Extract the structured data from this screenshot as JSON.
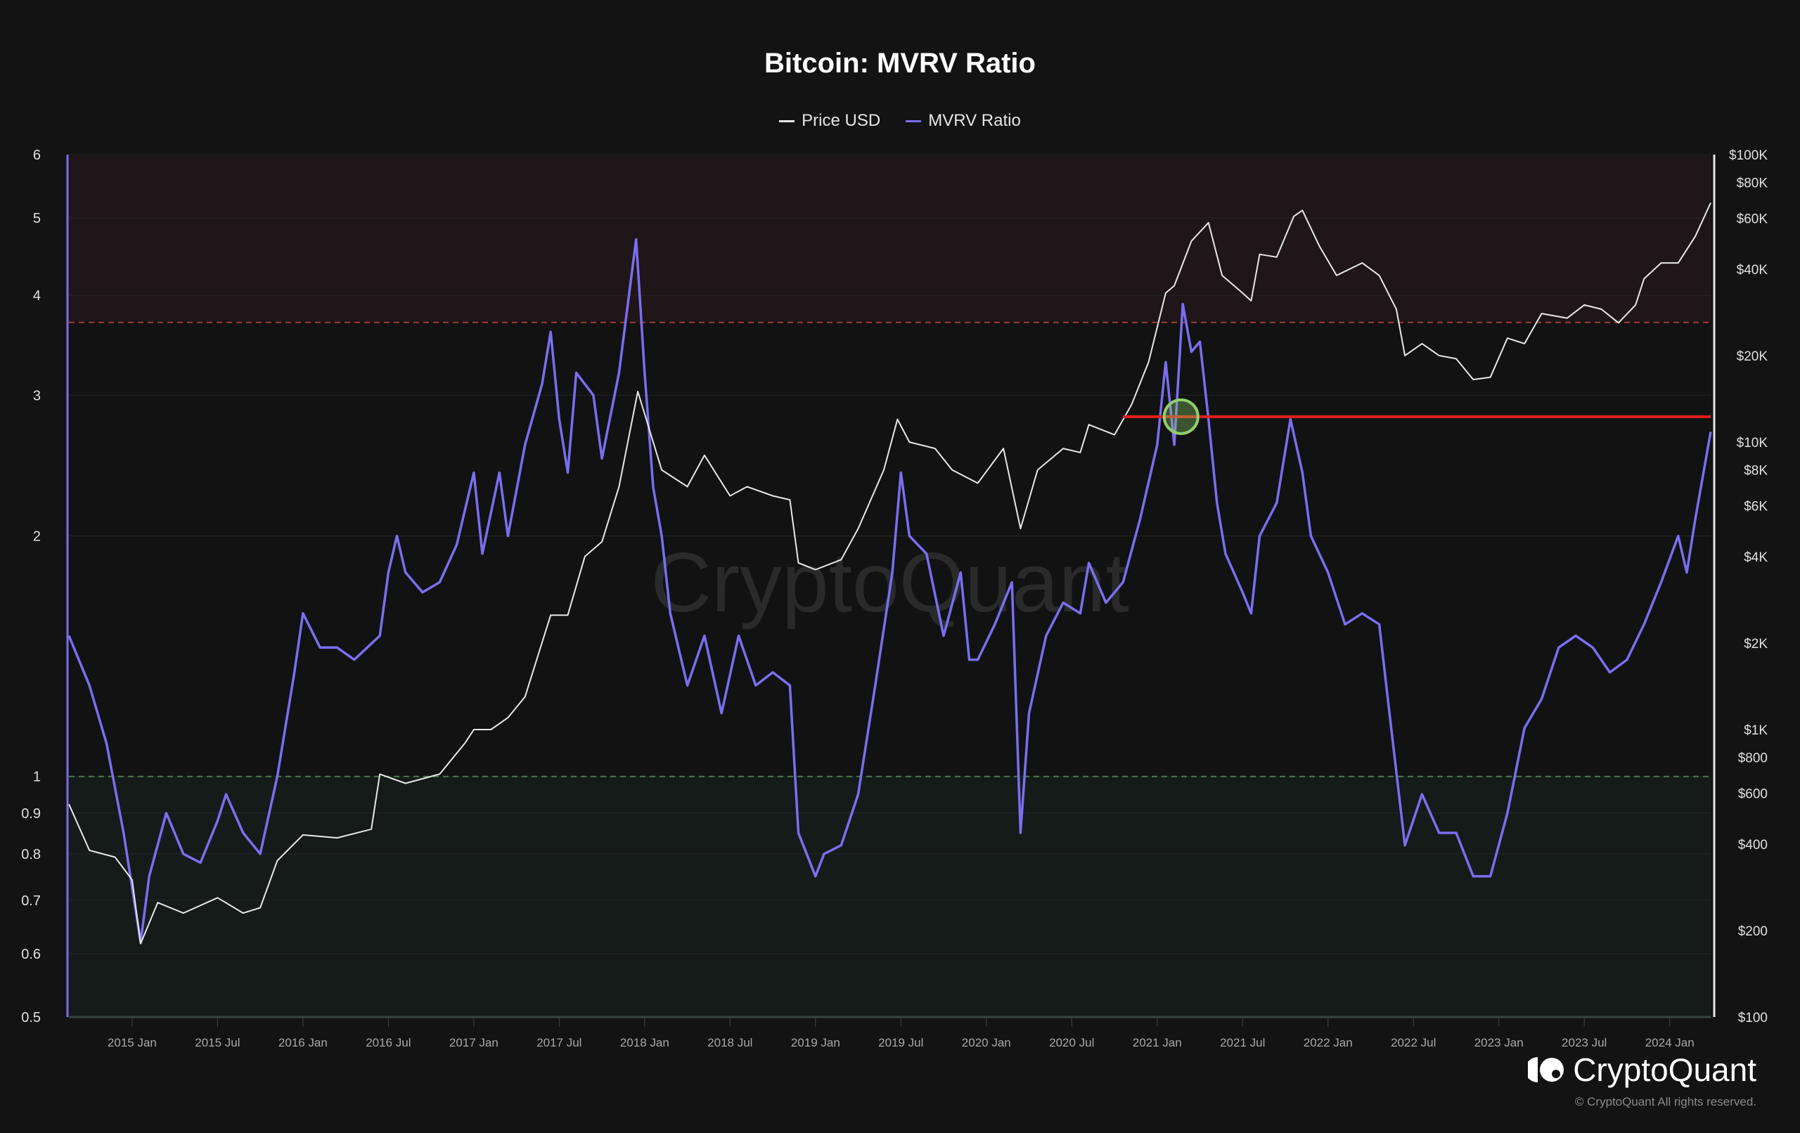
{
  "chart_data": {
    "type": "line",
    "title": "Bitcoin: MVRV Ratio",
    "legend_position": "top-center",
    "watermark": "CryptoQuant",
    "series": [
      {
        "name": "Price USD",
        "axis": "right",
        "color": "#e8e8e8",
        "points": [
          [
            2014.63,
            550
          ],
          [
            2014.75,
            380
          ],
          [
            2014.9,
            360
          ],
          [
            2015.0,
            300
          ],
          [
            2015.05,
            180
          ],
          [
            2015.15,
            250
          ],
          [
            2015.3,
            230
          ],
          [
            2015.5,
            260
          ],
          [
            2015.65,
            230
          ],
          [
            2015.75,
            240
          ],
          [
            2015.85,
            350
          ],
          [
            2016.0,
            430
          ],
          [
            2016.2,
            420
          ],
          [
            2016.4,
            450
          ],
          [
            2016.45,
            700
          ],
          [
            2016.6,
            650
          ],
          [
            2016.8,
            700
          ],
          [
            2016.95,
            900
          ],
          [
            2017.0,
            1000
          ],
          [
            2017.1,
            1000
          ],
          [
            2017.2,
            1100
          ],
          [
            2017.3,
            1300
          ],
          [
            2017.45,
            2500
          ],
          [
            2017.55,
            2500
          ],
          [
            2017.65,
            4000
          ],
          [
            2017.75,
            4500
          ],
          [
            2017.85,
            7000
          ],
          [
            2017.96,
            15000
          ],
          [
            2018.05,
            10000
          ],
          [
            2018.1,
            8000
          ],
          [
            2018.25,
            7000
          ],
          [
            2018.35,
            9000
          ],
          [
            2018.5,
            6500
          ],
          [
            2018.6,
            7000
          ],
          [
            2018.75,
            6500
          ],
          [
            2018.85,
            6300
          ],
          [
            2018.9,
            3800
          ],
          [
            2019.0,
            3600
          ],
          [
            2019.15,
            3900
          ],
          [
            2019.25,
            5000
          ],
          [
            2019.4,
            8000
          ],
          [
            2019.48,
            12000
          ],
          [
            2019.55,
            10000
          ],
          [
            2019.7,
            9500
          ],
          [
            2019.8,
            8000
          ],
          [
            2019.95,
            7200
          ],
          [
            2020.1,
            9500
          ],
          [
            2020.2,
            5000
          ],
          [
            2020.3,
            8000
          ],
          [
            2020.45,
            9500
          ],
          [
            2020.55,
            9200
          ],
          [
            2020.6,
            11500
          ],
          [
            2020.75,
            10600
          ],
          [
            2020.85,
            13500
          ],
          [
            2020.95,
            19000
          ],
          [
            2021.05,
            33000
          ],
          [
            2021.1,
            35000
          ],
          [
            2021.2,
            50000
          ],
          [
            2021.3,
            58000
          ],
          [
            2021.38,
            38000
          ],
          [
            2021.5,
            33000
          ],
          [
            2021.55,
            31000
          ],
          [
            2021.6,
            45000
          ],
          [
            2021.7,
            44000
          ],
          [
            2021.8,
            61000
          ],
          [
            2021.85,
            64000
          ],
          [
            2021.95,
            48000
          ],
          [
            2022.05,
            38000
          ],
          [
            2022.2,
            42000
          ],
          [
            2022.3,
            38000
          ],
          [
            2022.4,
            29000
          ],
          [
            2022.45,
            20000
          ],
          [
            2022.55,
            22000
          ],
          [
            2022.65,
            20000
          ],
          [
            2022.75,
            19500
          ],
          [
            2022.85,
            16500
          ],
          [
            2022.95,
            16800
          ],
          [
            2023.05,
            23000
          ],
          [
            2023.15,
            22000
          ],
          [
            2023.25,
            28000
          ],
          [
            2023.4,
            27000
          ],
          [
            2023.5,
            30000
          ],
          [
            2023.6,
            29000
          ],
          [
            2023.7,
            26000
          ],
          [
            2023.8,
            30000
          ],
          [
            2023.85,
            37000
          ],
          [
            2023.95,
            42000
          ],
          [
            2024.05,
            42000
          ],
          [
            2024.15,
            52000
          ],
          [
            2024.24,
            68000
          ]
        ]
      },
      {
        "name": "MVRV Ratio",
        "axis": "left",
        "color": "#7b6ef0",
        "points": [
          [
            2014.63,
            1.5
          ],
          [
            2014.75,
            1.3
          ],
          [
            2014.85,
            1.1
          ],
          [
            2014.95,
            0.85
          ],
          [
            2015.05,
            0.62
          ],
          [
            2015.1,
            0.75
          ],
          [
            2015.2,
            0.9
          ],
          [
            2015.3,
            0.8
          ],
          [
            2015.4,
            0.78
          ],
          [
            2015.5,
            0.88
          ],
          [
            2015.55,
            0.95
          ],
          [
            2015.65,
            0.85
          ],
          [
            2015.75,
            0.8
          ],
          [
            2015.85,
            1.0
          ],
          [
            2015.95,
            1.35
          ],
          [
            2016.0,
            1.6
          ],
          [
            2016.1,
            1.45
          ],
          [
            2016.2,
            1.45
          ],
          [
            2016.3,
            1.4
          ],
          [
            2016.45,
            1.5
          ],
          [
            2016.5,
            1.8
          ],
          [
            2016.55,
            2.0
          ],
          [
            2016.6,
            1.8
          ],
          [
            2016.7,
            1.7
          ],
          [
            2016.8,
            1.75
          ],
          [
            2016.9,
            1.95
          ],
          [
            2017.0,
            2.4
          ],
          [
            2017.05,
            1.9
          ],
          [
            2017.15,
            2.4
          ],
          [
            2017.2,
            2.0
          ],
          [
            2017.3,
            2.6
          ],
          [
            2017.4,
            3.1
          ],
          [
            2017.45,
            3.6
          ],
          [
            2017.5,
            2.8
          ],
          [
            2017.55,
            2.4
          ],
          [
            2017.6,
            3.2
          ],
          [
            2017.7,
            3.0
          ],
          [
            2017.75,
            2.5
          ],
          [
            2017.85,
            3.2
          ],
          [
            2017.95,
            4.7
          ],
          [
            2018.0,
            3.2
          ],
          [
            2018.05,
            2.3
          ],
          [
            2018.1,
            2.0
          ],
          [
            2018.15,
            1.6
          ],
          [
            2018.25,
            1.3
          ],
          [
            2018.35,
            1.5
          ],
          [
            2018.45,
            1.2
          ],
          [
            2018.55,
            1.5
          ],
          [
            2018.65,
            1.3
          ],
          [
            2018.75,
            1.35
          ],
          [
            2018.85,
            1.3
          ],
          [
            2018.9,
            0.85
          ],
          [
            2019.0,
            0.75
          ],
          [
            2019.05,
            0.8
          ],
          [
            2019.15,
            0.82
          ],
          [
            2019.25,
            0.95
          ],
          [
            2019.35,
            1.3
          ],
          [
            2019.45,
            1.8
          ],
          [
            2019.5,
            2.4
          ],
          [
            2019.55,
            2.0
          ],
          [
            2019.65,
            1.9
          ],
          [
            2019.75,
            1.5
          ],
          [
            2019.85,
            1.8
          ],
          [
            2019.9,
            1.4
          ],
          [
            2019.95,
            1.4
          ],
          [
            2020.05,
            1.55
          ],
          [
            2020.15,
            1.75
          ],
          [
            2020.2,
            0.85
          ],
          [
            2020.25,
            1.2
          ],
          [
            2020.35,
            1.5
          ],
          [
            2020.45,
            1.65
          ],
          [
            2020.55,
            1.6
          ],
          [
            2020.6,
            1.85
          ],
          [
            2020.7,
            1.65
          ],
          [
            2020.8,
            1.75
          ],
          [
            2020.9,
            2.1
          ],
          [
            2021.0,
            2.6
          ],
          [
            2021.05,
            3.3
          ],
          [
            2021.1,
            2.6
          ],
          [
            2021.15,
            3.9
          ],
          [
            2021.2,
            3.4
          ],
          [
            2021.25,
            3.5
          ],
          [
            2021.3,
            2.8
          ],
          [
            2021.35,
            2.2
          ],
          [
            2021.4,
            1.9
          ],
          [
            2021.5,
            1.7
          ],
          [
            2021.55,
            1.6
          ],
          [
            2021.6,
            2.0
          ],
          [
            2021.7,
            2.2
          ],
          [
            2021.78,
            2.8
          ],
          [
            2021.85,
            2.4
          ],
          [
            2021.9,
            2.0
          ],
          [
            2022.0,
            1.8
          ],
          [
            2022.1,
            1.55
          ],
          [
            2022.2,
            1.6
          ],
          [
            2022.3,
            1.55
          ],
          [
            2022.35,
            1.25
          ],
          [
            2022.45,
            0.82
          ],
          [
            2022.55,
            0.95
          ],
          [
            2022.65,
            0.85
          ],
          [
            2022.75,
            0.85
          ],
          [
            2022.85,
            0.75
          ],
          [
            2022.95,
            0.75
          ],
          [
            2023.05,
            0.9
          ],
          [
            2023.15,
            1.15
          ],
          [
            2023.25,
            1.25
          ],
          [
            2023.35,
            1.45
          ],
          [
            2023.45,
            1.5
          ],
          [
            2023.55,
            1.45
          ],
          [
            2023.65,
            1.35
          ],
          [
            2023.75,
            1.4
          ],
          [
            2023.85,
            1.55
          ],
          [
            2023.95,
            1.75
          ],
          [
            2024.05,
            2.0
          ],
          [
            2024.1,
            1.8
          ],
          [
            2024.15,
            2.1
          ],
          [
            2024.24,
            2.7
          ]
        ]
      }
    ],
    "x_range": [
      2014.63,
      2024.24
    ],
    "x_ticks": [
      {
        "v": 2015.0,
        "label": "2015 Jan"
      },
      {
        "v": 2015.5,
        "label": "2015 Jul"
      },
      {
        "v": 2016.0,
        "label": "2016 Jan"
      },
      {
        "v": 2016.5,
        "label": "2016 Jul"
      },
      {
        "v": 2017.0,
        "label": "2017 Jan"
      },
      {
        "v": 2017.5,
        "label": "2017 Jul"
      },
      {
        "v": 2018.0,
        "label": "2018 Jan"
      },
      {
        "v": 2018.5,
        "label": "2018 Jul"
      },
      {
        "v": 2019.0,
        "label": "2019 Jan"
      },
      {
        "v": 2019.5,
        "label": "2019 Jul"
      },
      {
        "v": 2020.0,
        "label": "2020 Jan"
      },
      {
        "v": 2020.5,
        "label": "2020 Jul"
      },
      {
        "v": 2021.0,
        "label": "2021 Jan"
      },
      {
        "v": 2021.5,
        "label": "2021 Jul"
      },
      {
        "v": 2022.0,
        "label": "2022 Jan"
      },
      {
        "v": 2022.5,
        "label": "2022 Jul"
      },
      {
        "v": 2023.0,
        "label": "2023 Jan"
      },
      {
        "v": 2023.5,
        "label": "2023 Jul"
      },
      {
        "v": 2024.0,
        "label": "2024 Jan"
      }
    ],
    "y_left": {
      "scale": "log",
      "range": [
        0.5,
        6
      ],
      "ticks": [
        {
          "v": 6,
          "label": "6"
        },
        {
          "v": 5,
          "label": "5"
        },
        {
          "v": 4,
          "label": "4"
        },
        {
          "v": 3,
          "label": "3"
        },
        {
          "v": 2,
          "label": "2"
        },
        {
          "v": 1,
          "label": "1"
        },
        {
          "v": 0.9,
          "label": "0.9"
        },
        {
          "v": 0.8,
          "label": "0.8"
        },
        {
          "v": 0.7,
          "label": "0.7"
        },
        {
          "v": 0.6,
          "label": "0.6"
        },
        {
          "v": 0.5,
          "label": "0.5"
        }
      ]
    },
    "y_right": {
      "scale": "log",
      "range": [
        100,
        100000
      ],
      "ticks": [
        {
          "v": 100000,
          "label": "$100K"
        },
        {
          "v": 80000,
          "label": "$80K"
        },
        {
          "v": 60000,
          "label": "$60K"
        },
        {
          "v": 40000,
          "label": "$40K"
        },
        {
          "v": 20000,
          "label": "$20K"
        },
        {
          "v": 10000,
          "label": "$10K"
        },
        {
          "v": 8000,
          "label": "$8K"
        },
        {
          "v": 6000,
          "label": "$6K"
        },
        {
          "v": 4000,
          "label": "$4K"
        },
        {
          "v": 2000,
          "label": "$2K"
        },
        {
          "v": 1000,
          "label": "$1K"
        },
        {
          "v": 800,
          "label": "$800"
        },
        {
          "v": 600,
          "label": "$600"
        },
        {
          "v": 400,
          "label": "$400"
        },
        {
          "v": 200,
          "label": "$200"
        },
        {
          "v": 100,
          "label": "$100"
        }
      ]
    },
    "bands": [
      {
        "name": "overvalued-zone",
        "from": 3.7,
        "to": 6,
        "color": "#1e1619",
        "line_color": "#a03a3a"
      },
      {
        "name": "undervalued-zone",
        "from": 0.5,
        "to": 1,
        "color": "#141b19",
        "line_color": "#4f7a4f"
      }
    ],
    "annotations": [
      {
        "type": "hline",
        "name": "resistance-line",
        "y": 2.82,
        "x_from": 2020.8,
        "x_to": 2024.24,
        "color": "#e0201c"
      },
      {
        "type": "circle",
        "name": "highlight-circle",
        "x": 2021.14,
        "y": 2.82,
        "color": "#8fd06a"
      }
    ]
  },
  "brand": {
    "name": "CryptoQuant",
    "copyright": "© CryptoQuant All rights reserved."
  }
}
